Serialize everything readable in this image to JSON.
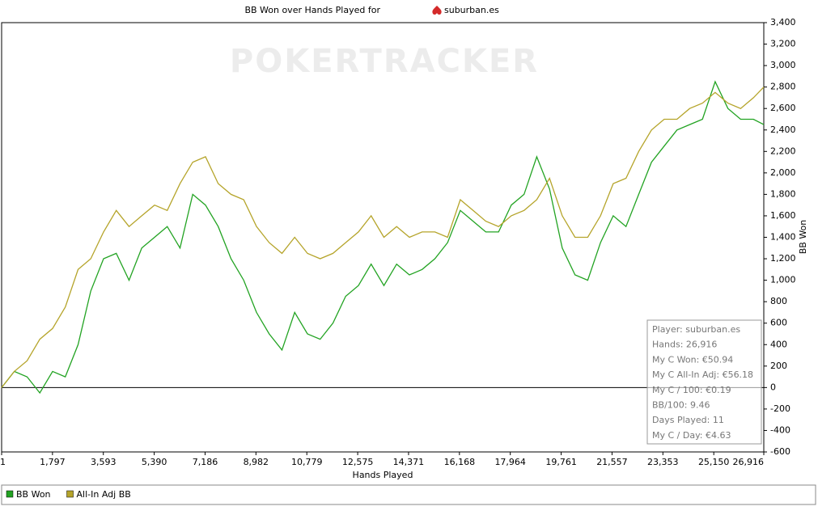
{
  "chart_data": {
    "type": "line",
    "title": "BB Won over Hands Played for",
    "title_player": "suburban.es",
    "watermark": "POKERTRACKER",
    "xlabel": "Hands Played",
    "ylabel": "BB Won",
    "xlim": [
      1,
      26916
    ],
    "xticks": [
      1,
      {
        "value": 1797,
        "label": "1,797"
      },
      {
        "value": 3593,
        "label": "3,593"
      },
      {
        "value": 5390,
        "label": "5,390"
      },
      {
        "value": 7186,
        "label": "7,186"
      },
      {
        "value": 8982,
        "label": "8,982"
      },
      {
        "value": 10779,
        "label": "10,779"
      },
      {
        "value": 12575,
        "label": "12,575"
      },
      {
        "value": 14371,
        "label": "14,371"
      },
      {
        "value": 16168,
        "label": "16,168"
      },
      {
        "value": 17964,
        "label": "17,964"
      },
      {
        "value": 19761,
        "label": "19,761"
      },
      {
        "value": 21557,
        "label": "21,557"
      },
      {
        "value": 23353,
        "label": "23,353"
      },
      {
        "value": 25150,
        "label": "25,150"
      },
      {
        "value": 26916,
        "label": "26,916"
      }
    ],
    "ylim": [
      -600,
      3400
    ],
    "yticks": [
      -600,
      -400,
      -200,
      0,
      200,
      400,
      600,
      800,
      {
        "value": 1000,
        "label": "1,000"
      },
      {
        "value": 1200,
        "label": "1,200"
      },
      {
        "value": 1400,
        "label": "1,400"
      },
      {
        "value": 1600,
        "label": "1,600"
      },
      {
        "value": 1800,
        "label": "1,800"
      },
      {
        "value": 2000,
        "label": "2,000"
      },
      {
        "value": 2200,
        "label": "2,200"
      },
      {
        "value": 2400,
        "label": "2,400"
      },
      {
        "value": 2600,
        "label": "2,600"
      },
      {
        "value": 2800,
        "label": "2,800"
      },
      {
        "value": 3000,
        "label": "3,000"
      },
      {
        "value": 3200,
        "label": "3,200"
      },
      {
        "value": 3400,
        "label": "3,400"
      }
    ],
    "grid": false,
    "x": [
      1,
      450,
      900,
      1350,
      1800,
      2250,
      2700,
      3150,
      3600,
      4050,
      4500,
      4950,
      5400,
      5850,
      6300,
      6750,
      7200,
      7650,
      8100,
      8550,
      9000,
      9450,
      9900,
      10350,
      10800,
      11250,
      11700,
      12150,
      12600,
      13050,
      13500,
      13950,
      14400,
      14850,
      15300,
      15750,
      16200,
      16650,
      17100,
      17550,
      18000,
      18450,
      18900,
      19350,
      19800,
      20250,
      20700,
      21150,
      21600,
      22050,
      22500,
      22950,
      23400,
      23850,
      24300,
      24750,
      25200,
      25650,
      26100,
      26550,
      26916
    ],
    "series": [
      {
        "name": "BB Won",
        "color": "#22a322",
        "values": [
          0,
          150,
          100,
          -50,
          150,
          100,
          400,
          900,
          1200,
          1250,
          1000,
          1300,
          1400,
          1500,
          1300,
          1800,
          1700,
          1500,
          1200,
          1000,
          700,
          500,
          350,
          700,
          500,
          450,
          600,
          850,
          950,
          1150,
          950,
          1150,
          1050,
          1100,
          1200,
          1350,
          1650,
          1550,
          1450,
          1450,
          1700,
          1800,
          2150,
          1850,
          1300,
          1050,
          1000,
          1350,
          1600,
          1500,
          1800,
          2100,
          2250,
          2400,
          2450,
          2500,
          2850,
          2600,
          2500,
          2500,
          2450
        ]
      },
      {
        "name": "All-In Adj BB",
        "color": "#b5a42a",
        "values": [
          0,
          150,
          250,
          450,
          550,
          750,
          1100,
          1200,
          1450,
          1650,
          1500,
          1600,
          1700,
          1650,
          1900,
          2100,
          2150,
          1900,
          1800,
          1750,
          1500,
          1350,
          1250,
          1400,
          1250,
          1200,
          1250,
          1350,
          1450,
          1600,
          1400,
          1500,
          1400,
          1450,
          1450,
          1400,
          1750,
          1650,
          1550,
          1500,
          1600,
          1650,
          1750,
          1950,
          1600,
          1400,
          1400,
          1600,
          1900,
          1950,
          2200,
          2400,
          2500,
          2500,
          2600,
          2650,
          2750,
          2650,
          2600,
          2700,
          2800
        ]
      }
    ],
    "stats": [
      "Player: suburban.es",
      "Hands: 26,916",
      "My C Won: €50.94",
      "My C All-In Adj: €56.18",
      "My C / 100: €0.19",
      "BB/100: 9.46",
      "Days Played: 11",
      "My C / Day: €4.63"
    ]
  }
}
